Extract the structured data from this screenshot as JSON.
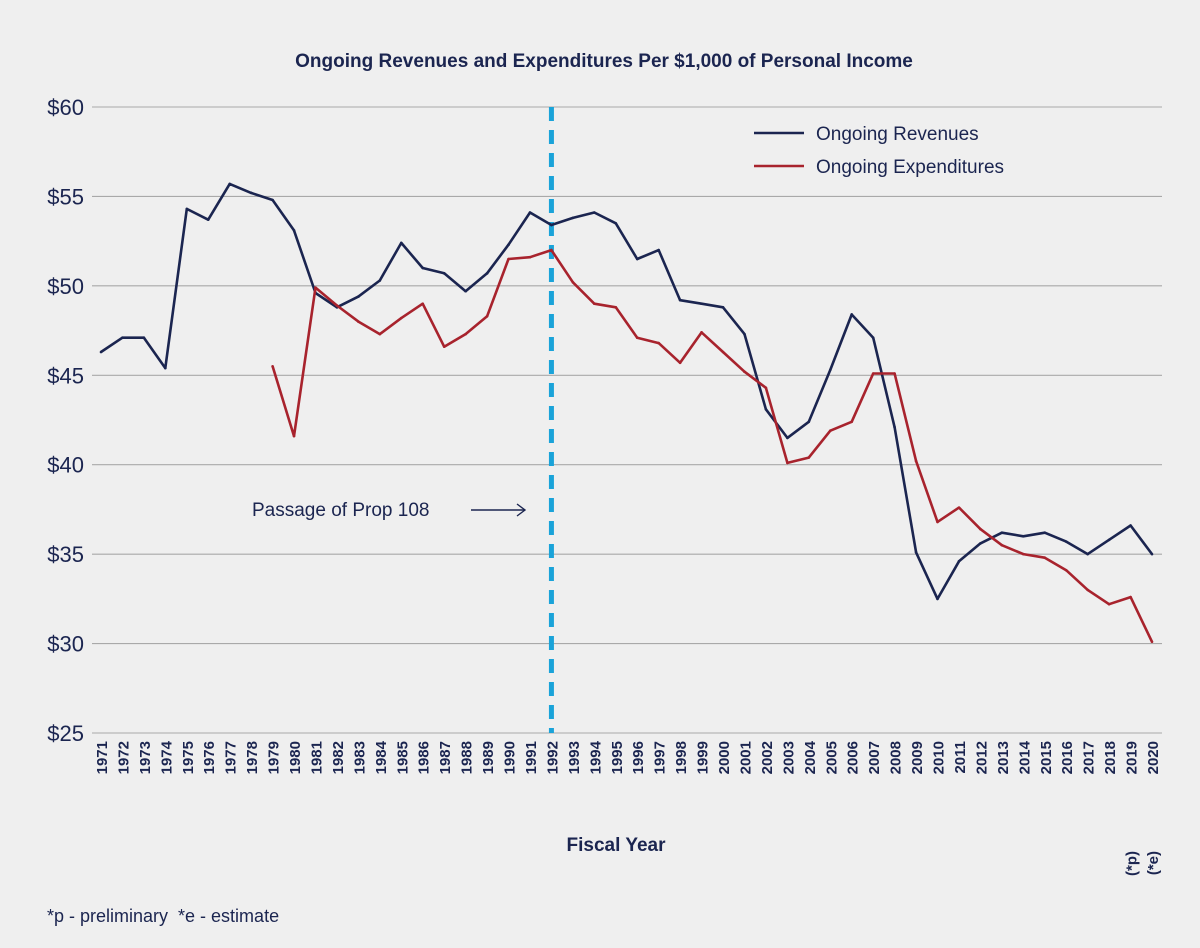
{
  "colors": {
    "background": "#efefef",
    "revenues": "#1b2550",
    "expenditures": "#a8232d",
    "divider": "#1aa3d9",
    "grid": "#a9a9a9",
    "text": "#1b2550"
  },
  "footnote": "*p - preliminary  *e - estimate",
  "annotation": {
    "text": "Passage of Prop 108"
  },
  "chart_data": {
    "type": "line",
    "title": "Ongoing Revenues and Expenditures Per $1,000 of Personal Income",
    "xlabel": "Fiscal Year",
    "ylabel": "",
    "ylim": [
      25,
      60
    ],
    "yticks": [
      25,
      30,
      35,
      40,
      45,
      50,
      55,
      60
    ],
    "ytick_labels": [
      "$25",
      "$30",
      "$35",
      "$40",
      "$45",
      "$50",
      "$55",
      "$60"
    ],
    "grid": true,
    "legend_position": "top-right",
    "categories": [
      "1971",
      "1972",
      "1973",
      "1974",
      "1975",
      "1976",
      "1977",
      "1978",
      "1979",
      "1980",
      "1981",
      "1982",
      "1983",
      "1984",
      "1985",
      "1986",
      "1987",
      "1988",
      "1989",
      "1990",
      "1991",
      "1992",
      "1993",
      "1994",
      "1995",
      "1996",
      "1997",
      "1998",
      "1999",
      "2000",
      "2001",
      "2002",
      "2003",
      "2004",
      "2005",
      "2006",
      "2007",
      "2008",
      "2009",
      "2010",
      "2011",
      "2012",
      "2013",
      "2014",
      "2015",
      "2016",
      "2017",
      "2018",
      "2019",
      "2020"
    ],
    "tick_notes": {
      "2019": "(*p)",
      "2020": "(*e)"
    },
    "vertical_line": {
      "x": "1992",
      "style": "dashed"
    },
    "series": [
      {
        "name": "Ongoing Revenues",
        "values": [
          46.3,
          47.1,
          47.1,
          45.4,
          54.3,
          53.7,
          55.7,
          55.2,
          54.8,
          53.1,
          49.6,
          48.8,
          49.4,
          50.3,
          52.4,
          51.0,
          50.7,
          49.7,
          50.7,
          52.3,
          54.1,
          53.4,
          53.8,
          54.1,
          53.5,
          51.5,
          52.0,
          49.2,
          49.0,
          48.8,
          47.3,
          43.1,
          41.5,
          42.4,
          45.3,
          48.4,
          47.1,
          42.1,
          35.1,
          32.5,
          34.6,
          35.6,
          36.2,
          36.0,
          36.2,
          35.7,
          35.0,
          35.8,
          36.6,
          35.0
        ]
      },
      {
        "name": "Ongoing Expenditures",
        "values": [
          null,
          null,
          null,
          null,
          null,
          null,
          null,
          null,
          45.5,
          41.6,
          49.9,
          48.9,
          48.0,
          47.3,
          48.2,
          49.0,
          46.6,
          47.3,
          48.3,
          51.5,
          51.6,
          52.0,
          50.2,
          49.0,
          48.8,
          47.1,
          46.8,
          45.7,
          47.4,
          46.3,
          45.2,
          44.3,
          40.1,
          40.4,
          41.9,
          42.4,
          45.1,
          45.1,
          40.2,
          36.8,
          37.6,
          36.4,
          35.5,
          35.0,
          34.8,
          34.1,
          33.0,
          32.2,
          32.6,
          30.1
        ]
      }
    ]
  }
}
